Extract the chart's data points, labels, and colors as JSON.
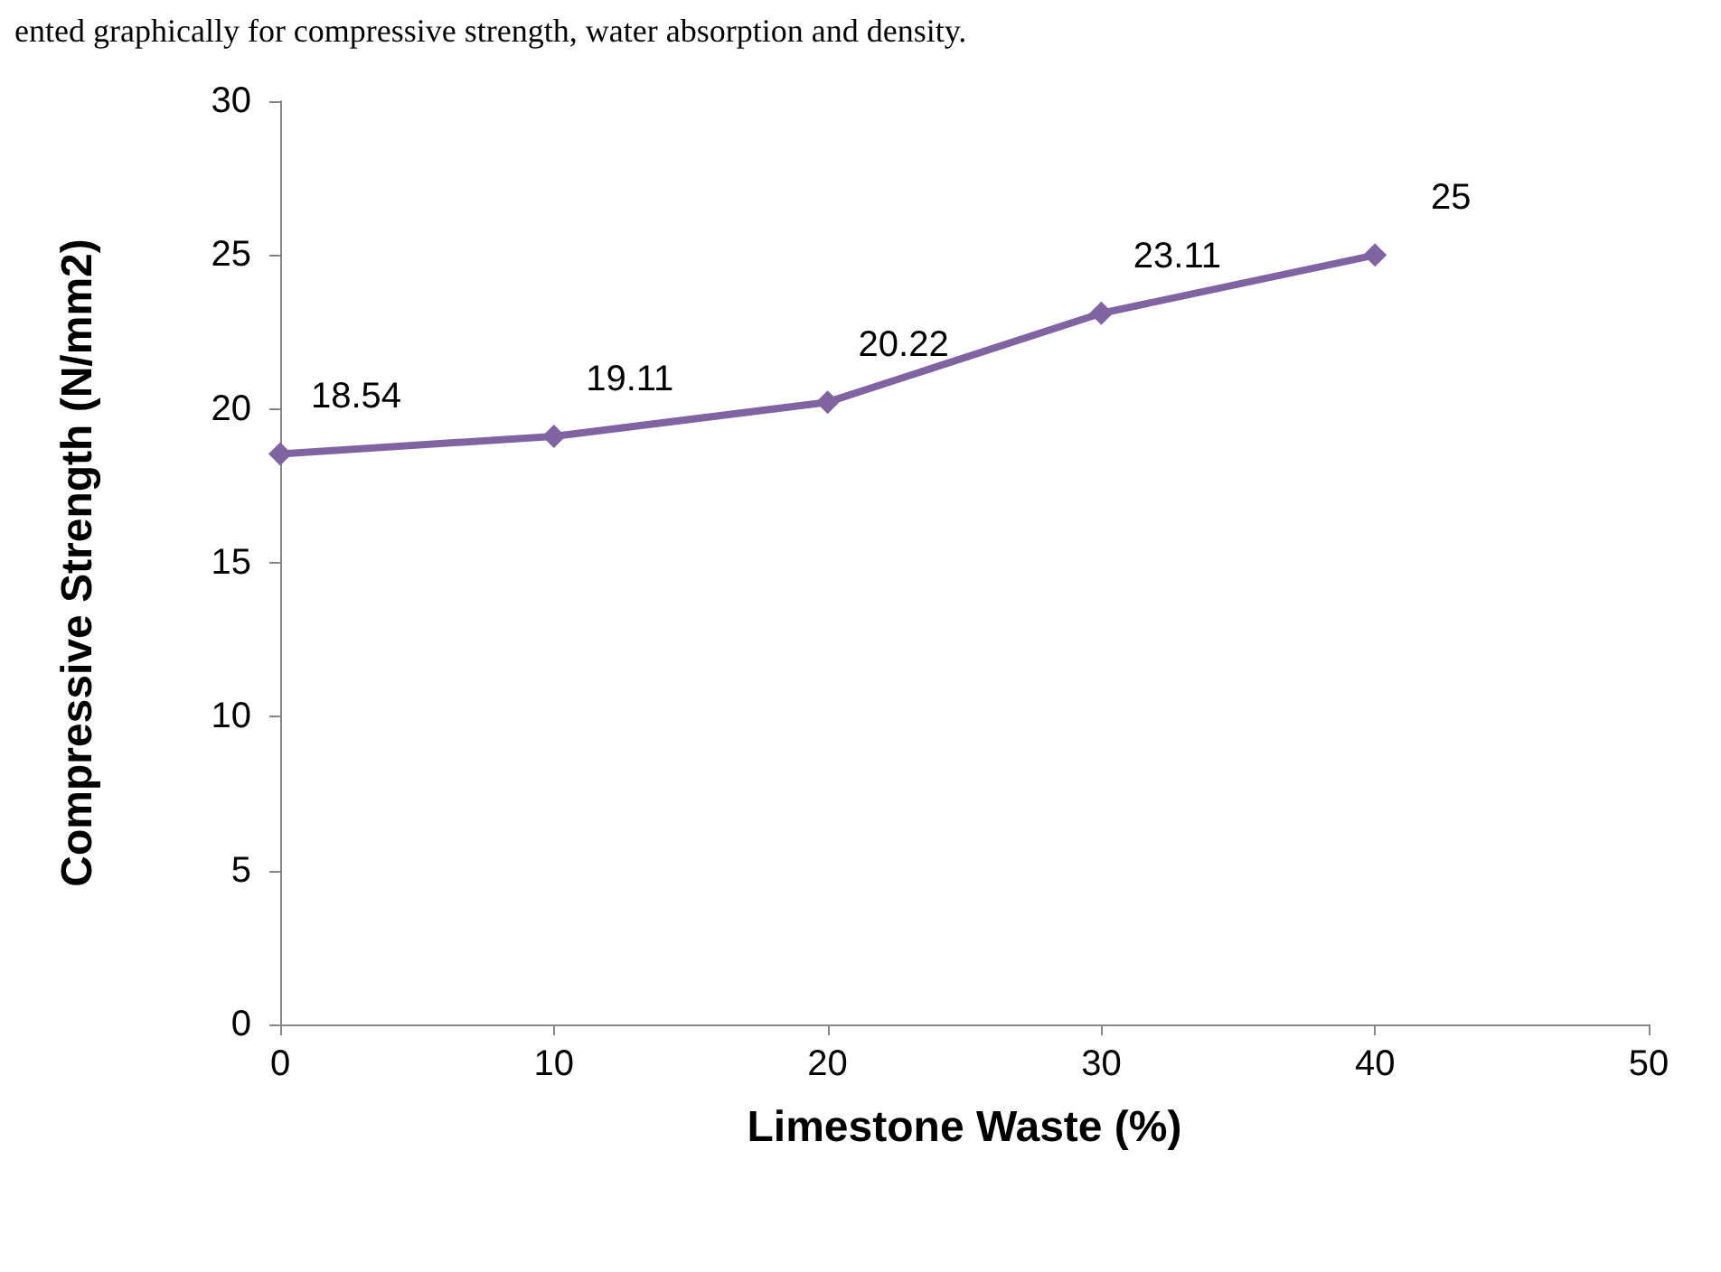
{
  "chart_data": {
    "type": "line",
    "xlabel": "Limestone Waste (%)",
    "ylabel": "Compressive Strength (N/mm2)",
    "annotations": [
      "ented graphically for compressive strength, water absorption and density."
    ],
    "x": [
      0,
      10,
      20,
      30,
      40
    ],
    "series": [
      {
        "color": "#8064a2",
        "values": [
          18.54,
          19.11,
          20.22,
          23.11,
          25
        ]
      }
    ],
    "xlim": [
      0,
      50
    ],
    "xticks": [
      0,
      10,
      20,
      30,
      40,
      50
    ],
    "ylim": [
      0,
      30
    ],
    "yticks": [
      0,
      5,
      10,
      15,
      20,
      25,
      30
    ],
    "marker": "diamond",
    "line_style": "solid",
    "data_labels": true
  }
}
